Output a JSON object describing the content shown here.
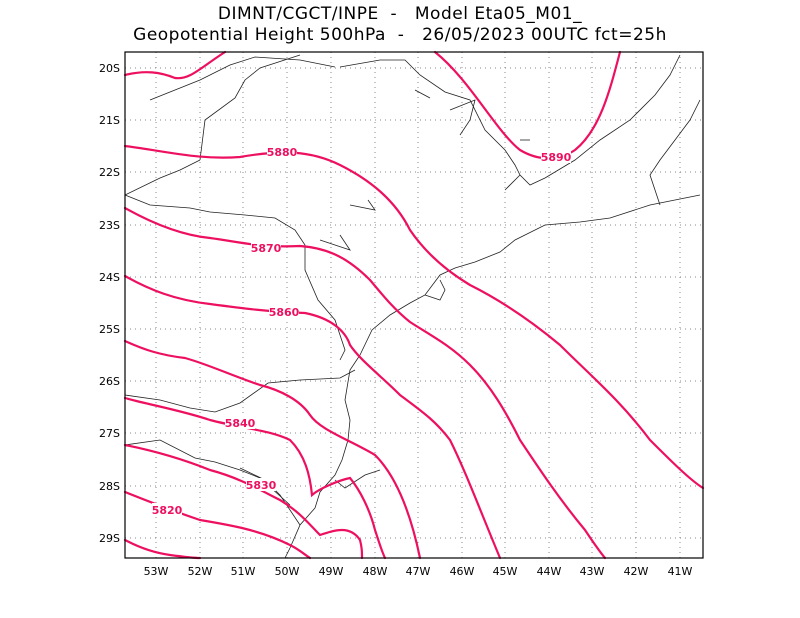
{
  "title_line1": "DIMNT/CGCT/INPE  -   Model Eta05_M01_",
  "title_line2": "Geopotential Height 500hPa  -   26/05/2023 00UTC fct=25h",
  "colors": {
    "contour": "#ee1060",
    "coast": "#222222",
    "grid": "#888888",
    "frame": "#000000"
  },
  "lat_labels": [
    "20S",
    "21S",
    "22S",
    "23S",
    "24S",
    "25S",
    "26S",
    "27S",
    "28S",
    "29S"
  ],
  "lon_labels": [
    "53W",
    "52W",
    "51W",
    "50W",
    "49W",
    "48W",
    "47W",
    "46W",
    "45W",
    "44W",
    "43W",
    "42W",
    "41W"
  ],
  "contour_labels": [
    "5890",
    "5880",
    "5870",
    "5860",
    "5840",
    "5830",
    "5820"
  ]
}
